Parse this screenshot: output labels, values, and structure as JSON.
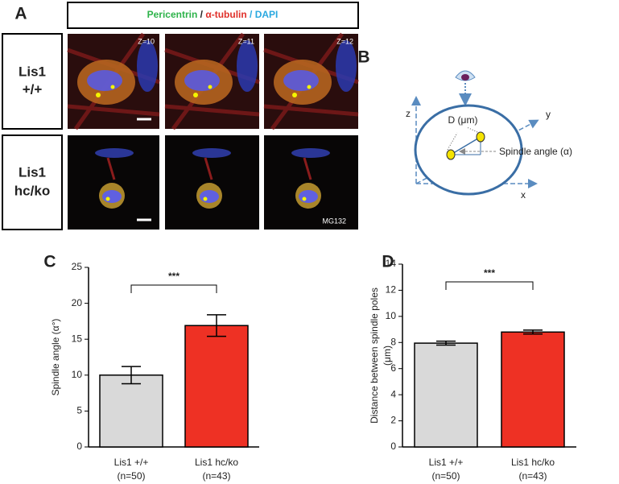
{
  "panel_a": {
    "label": "A",
    "legend": {
      "pericentrin": "Pericentrin",
      "sep": "/",
      "tubulin": "α-tubulin",
      "dapi": "/ DAPI"
    },
    "rows": [
      [
        "Lis1",
        "+/+"
      ],
      [
        "Lis1",
        "hc/ko"
      ]
    ],
    "z_labels": [
      "Z=10",
      "Z=11",
      "Z=12"
    ],
    "treatment": "MG132"
  },
  "panel_b": {
    "label": "B",
    "axes": {
      "z": "z",
      "y": "y",
      "x": "x"
    },
    "distance": "D (μm)",
    "angle": "Spindle angle (α)"
  },
  "chart_data": [
    {
      "type": "bar",
      "label": "C",
      "ylabel": [
        "Spindle angle (α°)"
      ],
      "categories": [
        "Lis1 +/+",
        "Lis1 hc/ko"
      ],
      "sample_sizes": [
        "(n=50)",
        "(n=43)"
      ],
      "values": [
        10,
        16.9
      ],
      "errors": [
        1.2,
        1.5
      ],
      "colors": [
        "#d9d9d9",
        "#ee3124"
      ],
      "ylim": [
        0,
        25
      ],
      "yticks": [
        0,
        5,
        10,
        15,
        20,
        25
      ],
      "annotation": "***"
    },
    {
      "type": "bar",
      "label": "D",
      "ylabel": [
        "Distance between spindle poles",
        "(μm)"
      ],
      "categories": [
        "Lis1 +/+",
        "Lis1 hc/ko"
      ],
      "sample_sizes": [
        "(n=50)",
        "(n=43)"
      ],
      "values": [
        7.95,
        8.8
      ],
      "errors": [
        0.15,
        0.15
      ],
      "colors": [
        "#d9d9d9",
        "#ee3124"
      ],
      "ylim": [
        0,
        14
      ],
      "yticks": [
        0,
        2,
        4,
        6,
        8,
        10,
        12,
        14
      ],
      "annotation": "***"
    }
  ]
}
